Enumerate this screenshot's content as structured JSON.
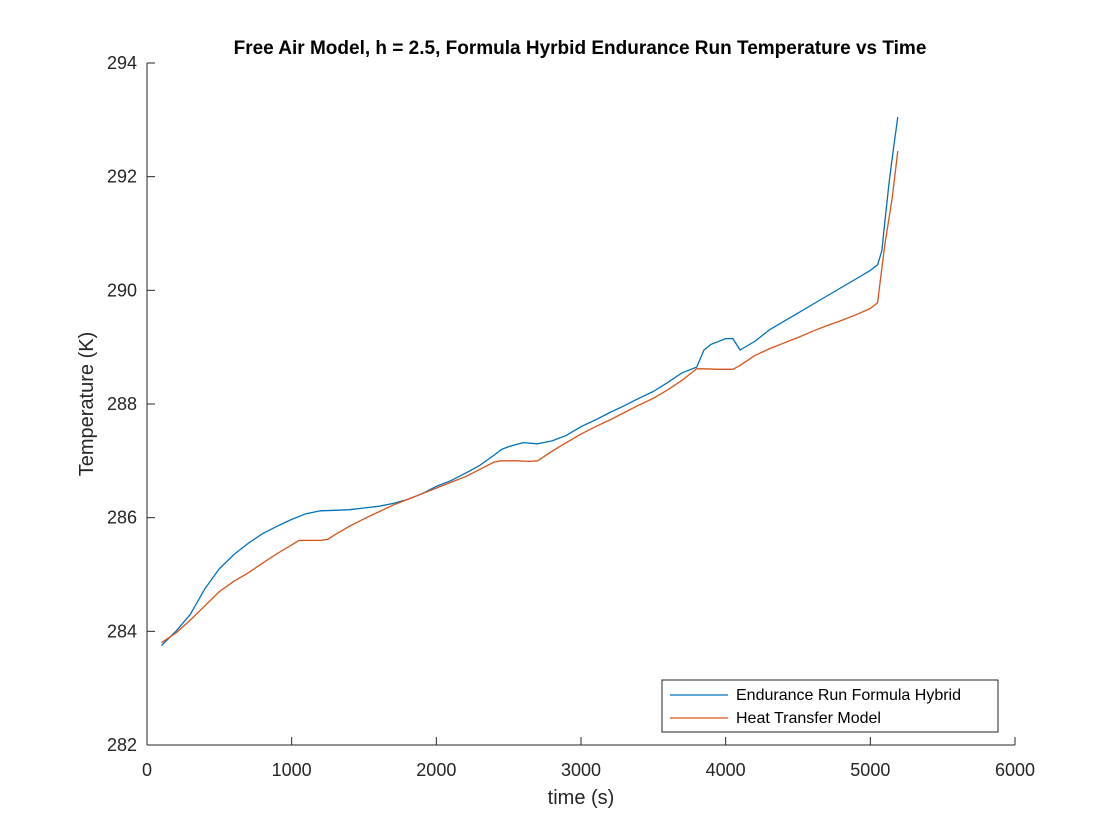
{
  "chart_data": {
    "type": "line",
    "title": "Free Air Model, h = 2.5, Formula Hyrbid Endurance Run Temperature vs Time",
    "xlabel": "time (s)",
    "ylabel": "Temperature (K)",
    "xlim": [
      0,
      6000
    ],
    "ylim": [
      282,
      294
    ],
    "xticks": [
      0,
      1000,
      2000,
      3000,
      4000,
      5000,
      6000
    ],
    "yticks": [
      282,
      284,
      286,
      288,
      290,
      292,
      294
    ],
    "grid": false,
    "legend_position": "bottom-right",
    "series": [
      {
        "name": "Endurance Run Formula Hybrid",
        "color": "#0072BD",
        "x": [
          100,
          200,
          300,
          400,
          500,
          600,
          700,
          800,
          900,
          1000,
          1100,
          1200,
          1300,
          1400,
          1500,
          1600,
          1700,
          1800,
          1900,
          2000,
          2100,
          2200,
          2300,
          2400,
          2450,
          2500,
          2600,
          2700,
          2800,
          2900,
          3000,
          3100,
          3200,
          3300,
          3400,
          3500,
          3600,
          3700,
          3800,
          3850,
          3900,
          4000,
          4050,
          4100,
          4200,
          4300,
          4400,
          4500,
          4600,
          4700,
          4800,
          4900,
          5000,
          5050,
          5080,
          5100,
          5130,
          5160,
          5190
        ],
        "values": [
          283.75,
          284.0,
          284.3,
          284.75,
          285.1,
          285.35,
          285.55,
          285.72,
          285.85,
          285.97,
          286.07,
          286.12,
          286.13,
          286.14,
          286.17,
          286.2,
          286.25,
          286.32,
          286.42,
          286.55,
          286.65,
          286.78,
          286.92,
          287.1,
          287.2,
          287.25,
          287.32,
          287.3,
          287.35,
          287.45,
          287.6,
          287.72,
          287.85,
          287.97,
          288.1,
          288.22,
          288.38,
          288.55,
          288.65,
          288.95,
          289.05,
          289.15,
          289.15,
          288.95,
          289.1,
          289.3,
          289.45,
          289.6,
          289.75,
          289.9,
          290.05,
          290.2,
          290.35,
          290.45,
          290.7,
          291.2,
          291.9,
          292.5,
          293.05
        ]
      },
      {
        "name": "Heat Transfer Model",
        "color": "#D95319",
        "x": [
          100,
          200,
          300,
          400,
          500,
          600,
          700,
          800,
          900,
          1000,
          1050,
          1100,
          1200,
          1250,
          1300,
          1400,
          1500,
          1600,
          1700,
          1800,
          1900,
          2000,
          2100,
          2200,
          2300,
          2400,
          2450,
          2550,
          2650,
          2700,
          2800,
          2900,
          3000,
          3100,
          3200,
          3300,
          3400,
          3500,
          3600,
          3700,
          3800,
          3850,
          3950,
          4050,
          4100,
          4200,
          4300,
          4400,
          4500,
          4600,
          4700,
          4800,
          4900,
          5000,
          5050,
          5070,
          5100,
          5150,
          5190
        ],
        "values": [
          283.8,
          283.97,
          284.2,
          284.45,
          284.7,
          284.88,
          285.03,
          285.2,
          285.37,
          285.52,
          285.6,
          285.6,
          285.6,
          285.62,
          285.7,
          285.85,
          285.98,
          286.1,
          286.22,
          286.32,
          286.42,
          286.52,
          286.62,
          286.72,
          286.85,
          286.98,
          287.0,
          287.0,
          286.99,
          287.0,
          287.17,
          287.32,
          287.47,
          287.6,
          287.72,
          287.85,
          287.98,
          288.1,
          288.25,
          288.42,
          288.62,
          288.62,
          288.61,
          288.61,
          288.68,
          288.85,
          288.97,
          289.07,
          289.17,
          289.28,
          289.38,
          289.47,
          289.57,
          289.68,
          289.78,
          290.2,
          290.8,
          291.6,
          292.45
        ]
      }
    ]
  }
}
